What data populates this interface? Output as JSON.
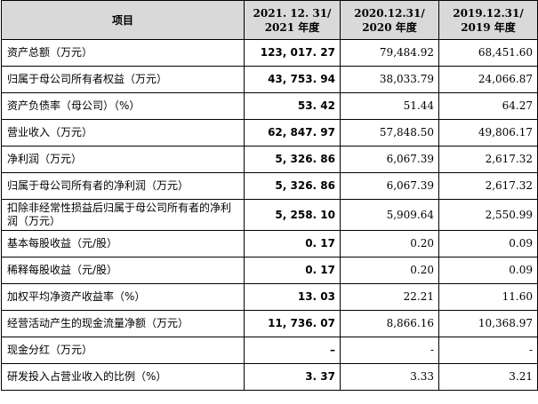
{
  "header": {
    "item": "项目",
    "col2021_line1": "2021. 12. 31/",
    "col2021_line2": "2021 年度",
    "col2020_line1": "2020.12.31/",
    "col2020_line2": "2020 年度",
    "col2019_line1": "2019.12.31/",
    "col2019_line2": "2019 年度"
  },
  "rows": [
    {
      "label": "资产总额（万元）",
      "v2021": "123, 017. 27",
      "v2020": "79,484.92",
      "v2019": "68,451.60"
    },
    {
      "label": "归属于母公司所有者权益（万元）",
      "v2021": "43, 753. 94",
      "v2020": "38,033.79",
      "v2019": "24,066.87"
    },
    {
      "label": "资产负债率（母公司）（%）",
      "v2021": "53. 42",
      "v2020": "51.44",
      "v2019": "64.27"
    },
    {
      "label": "营业收入（万元）",
      "v2021": "62, 847. 97",
      "v2020": "57,848.50",
      "v2019": "49,806.17"
    },
    {
      "label": "净利润（万元）",
      "v2021": "5, 326. 86",
      "v2020": "6,067.39",
      "v2019": "2,617.32"
    },
    {
      "label": "归属于母公司所有者的净利润（万元）",
      "v2021": "5, 326. 86",
      "v2020": "6,067.39",
      "v2019": "2,617.32"
    },
    {
      "label": "扣除非经常性损益后归属于母公司所有者的净利润（万元）",
      "v2021": "5, 258. 10",
      "v2020": "5,909.64",
      "v2019": "2,550.99"
    },
    {
      "label": "基本每股收益（元/股）",
      "v2021": "0. 17",
      "v2020": "0.20",
      "v2019": "0.09"
    },
    {
      "label": "稀释每股收益（元/股）",
      "v2021": "0. 17",
      "v2020": "0.20",
      "v2019": "0.09"
    },
    {
      "label": "加权平均净资产收益率（%）",
      "v2021": "13. 03",
      "v2020": "22.21",
      "v2019": "11.60"
    },
    {
      "label": "经营活动产生的现金流量净额（万元）",
      "v2021": "11, 736. 07",
      "v2020": "8,866.16",
      "v2019": "10,368.97"
    },
    {
      "label": "现金分红（万元）",
      "v2021": "–",
      "v2020": "-",
      "v2019": "-"
    },
    {
      "label": "研发投入占营业收入的比例（%）",
      "v2021": "3. 37",
      "v2020": "3.33",
      "v2019": "3.21"
    }
  ]
}
